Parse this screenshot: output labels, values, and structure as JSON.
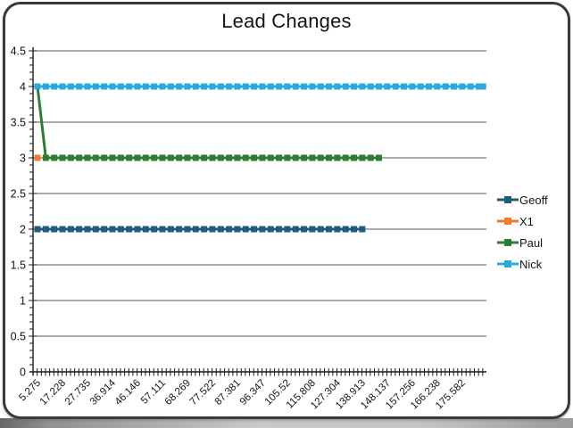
{
  "window": {
    "background": "#ffffff",
    "frame_border_color": "#3a3a3a",
    "bottom_strip_colors": [
      "#676767",
      "#c9c9c9",
      "#9a9a9a"
    ]
  },
  "chart_data": {
    "type": "line",
    "title": "Lead Changes",
    "xlabel": "",
    "ylabel": "",
    "ylim": [
      0,
      4.5
    ],
    "y_tick_step": 0.5,
    "y_minor_tick_step": 0.1,
    "grid": "horizontal gridlines every 0.5",
    "gridline_color": "#595959",
    "axis_color": "#1a1a1a",
    "legend_position": "right",
    "legend_entries": [
      "Geoff",
      "X1",
      "Paul",
      "Nick"
    ],
    "n_categories": 108,
    "x_tick_label_interval": 6,
    "marker_interval": 2,
    "x_tick_labels": [
      "5.275",
      "17.228",
      "27.735",
      "36.914",
      "46.146",
      "57.111",
      "68.269",
      "77.522",
      "87.381",
      "96.347",
      "105.52",
      "115.808",
      "127.304",
      "138.913",
      "148.137",
      "157.256",
      "166.238",
      "175.582"
    ],
    "series": [
      {
        "name": "Geoff",
        "color": "#1F5B7D",
        "marker": "square",
        "segments": [
          {
            "from_index": 0,
            "to_index": 78,
            "value": 2
          }
        ]
      },
      {
        "name": "X1",
        "color": "#ED7D31",
        "marker": "square",
        "segments": [
          {
            "from_index": 0,
            "to_index": 0,
            "value": 3
          }
        ]
      },
      {
        "name": "Paul",
        "color": "#2E7D33",
        "marker": "square",
        "segments": [
          {
            "from_index": 0,
            "to_index": 0,
            "value": 4
          },
          {
            "from_index": 2,
            "to_index": 82,
            "value": 3
          }
        ]
      },
      {
        "name": "Nick",
        "color": "#29A9DC",
        "marker": "square",
        "segments": [
          {
            "from_index": 0,
            "to_index": 107,
            "value": 4
          }
        ]
      }
    ]
  }
}
